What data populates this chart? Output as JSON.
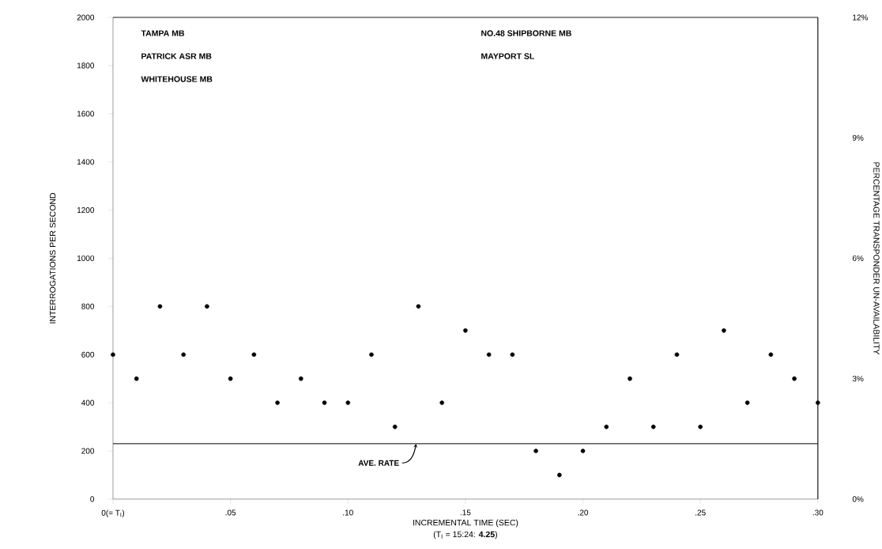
{
  "chart_data": {
    "type": "scatter",
    "xlabel": "INCREMENTAL TIME (SEC)",
    "ylabel": "INTERROGATIONS PER SECOND",
    "y2label": "PERCENTAGE TRANSPONDER UN-AVAILABILITY",
    "x": [
      0,
      0.01,
      0.02,
      0.03,
      0.04,
      0.05,
      0.06,
      0.07,
      0.08,
      0.09,
      0.1,
      0.11,
      0.12,
      0.13,
      0.14,
      0.15,
      0.16,
      0.17,
      0.18,
      0.19,
      0.2,
      0.21,
      0.22,
      0.23,
      0.24,
      0.25,
      0.26,
      0.27,
      0.28,
      0.29,
      0.3
    ],
    "values": [
      600,
      500,
      800,
      600,
      800,
      500,
      600,
      400,
      500,
      400,
      400,
      600,
      300,
      800,
      400,
      700,
      600,
      600,
      200,
      100,
      200,
      300,
      500,
      300,
      600,
      300,
      700,
      400,
      600,
      500,
      400
    ],
    "color": "#000000",
    "marker": "circle",
    "xlim": [
      0,
      0.3
    ],
    "xticks": [
      {
        "value": 0,
        "label": "0(= T$_{I}$)"
      },
      {
        "value": 0.05,
        "label": ".05"
      },
      {
        "value": 0.1,
        "label": ".10"
      },
      {
        "value": 0.15,
        "label": ".15"
      },
      {
        "value": 0.2,
        "label": ".20"
      },
      {
        "value": 0.25,
        "label": ".25"
      },
      {
        "value": 0.3,
        "label": ".30"
      }
    ],
    "ylim": [
      0,
      2000
    ],
    "yticks": [
      0,
      200,
      400,
      600,
      800,
      1000,
      1200,
      1400,
      1600,
      1800,
      2000
    ],
    "y2lim": [
      0,
      12
    ],
    "y2ticks": [
      {
        "value": 0,
        "label": "0%"
      },
      {
        "value": 3,
        "label": "3%"
      },
      {
        "value": 6,
        "label": "6%"
      },
      {
        "value": 9,
        "label": "9%"
      },
      {
        "value": 12,
        "label": "12%"
      }
    ],
    "ref_lines": [
      {
        "axis": "y",
        "value": 230,
        "label": "AVE. RATE"
      }
    ],
    "annotations": [
      "TAMPA MB",
      "PATRICK ASR MB",
      "WHITEHOUSE MB",
      "NO.48 SHIPBORNE MB",
      "MAYPORT SL",
      "(T$_{I}$ = 15:24: **4.25**)"
    ],
    "grid": false
  }
}
